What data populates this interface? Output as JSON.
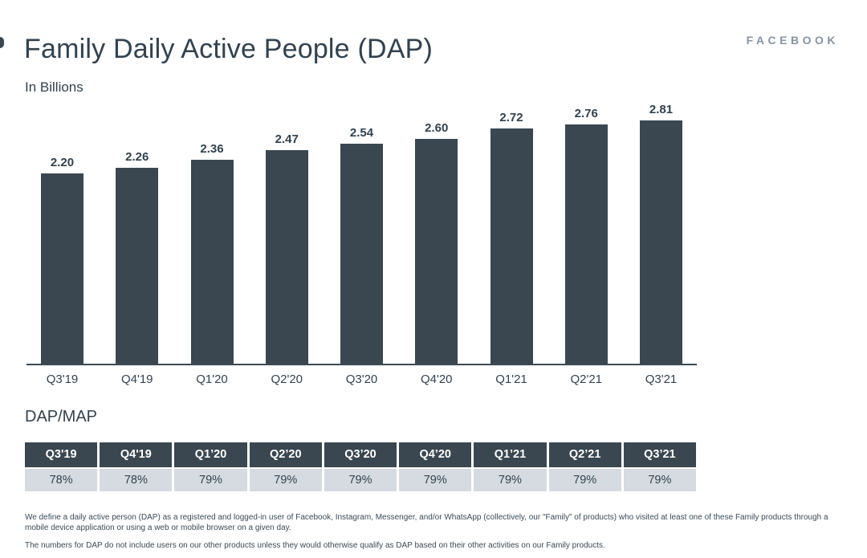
{
  "page": {
    "title": "Family Daily Active People (DAP)",
    "subtitle": "In Billions",
    "brand": "FACEBOOK"
  },
  "chart_data": {
    "type": "bar",
    "title": "Family Daily Active People (DAP)",
    "ylabel": "In Billions",
    "xlabel": "",
    "categories": [
      "Q3'19",
      "Q4'19",
      "Q1'20",
      "Q2'20",
      "Q3'20",
      "Q4'20",
      "Q1'21",
      "Q2'21",
      "Q3'21"
    ],
    "values": [
      2.2,
      2.26,
      2.36,
      2.47,
      2.54,
      2.6,
      2.72,
      2.76,
      2.81
    ],
    "value_labels": [
      "2.20",
      "2.26",
      "2.36",
      "2.47",
      "2.54",
      "2.60",
      "2.72",
      "2.76",
      "2.81"
    ],
    "ylim": [
      0,
      3.0
    ],
    "grid": false,
    "legend": "none",
    "bar_color": "#3a4750",
    "axis_line_color": "#3b4a55"
  },
  "table": {
    "heading": "DAP/MAP",
    "columns": [
      "Q3'19",
      "Q4'19",
      "Q1’20",
      "Q2’20",
      "Q3’20",
      "Q4’20",
      "Q1’21",
      "Q2’21",
      "Q3’21"
    ],
    "values": [
      "78%",
      "78%",
      "79%",
      "79%",
      "79%",
      "79%",
      "79%",
      "79%",
      "79%"
    ],
    "header_bg": "#3a4750",
    "header_text_color": "#ffffff",
    "row_bg": "#d5dbe0"
  },
  "footnotes": [
    "We define a daily active person (DAP) as a registered and logged-in user of Facebook, Instagram, Messenger, and/or WhatsApp (collectively, our \"Family\" of products) who visited at least one of these Family products through a mobile device application or using a web or mobile browser on a given day.",
    "The numbers for DAP do not include users on our other products unless they would otherwise qualify as DAP based on their other activities on our Family products."
  ],
  "colors": {
    "accent_dark": "#3a4750",
    "text_dark": "#33424e",
    "brand_gray": "#8794a3",
    "table_row_gray": "#d5dbe0"
  }
}
